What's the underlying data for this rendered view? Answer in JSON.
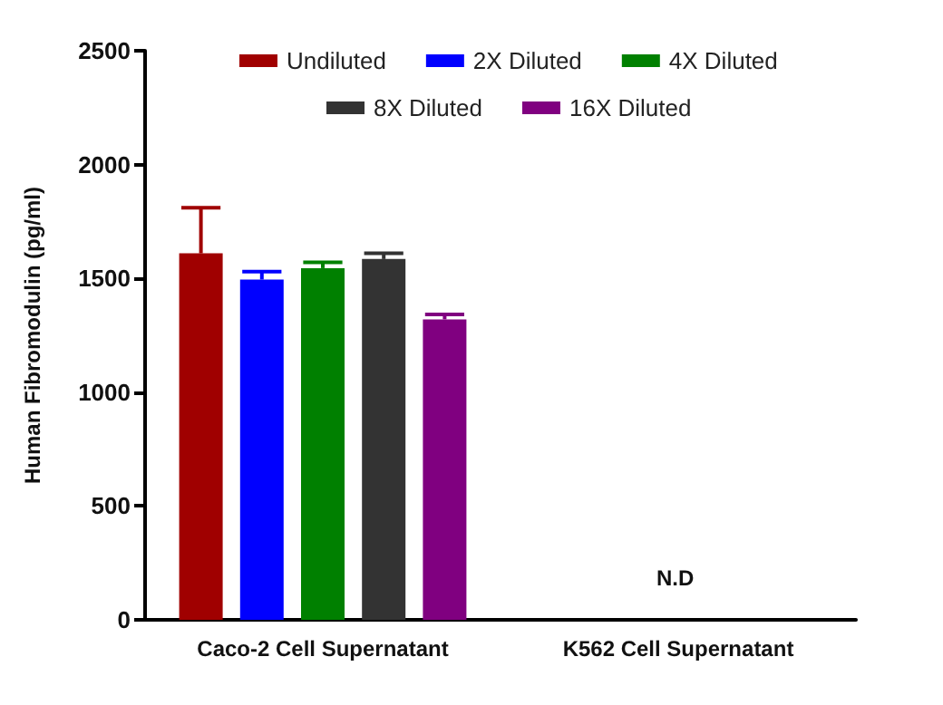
{
  "chart_data": {
    "type": "bar",
    "ylabel": "Human Fibromodulin (pg/ml)",
    "categories": [
      "Caco-2 Cell Supernatant",
      "K562 Cell Supernatant"
    ],
    "series": [
      {
        "name": "Undiluted",
        "color": "#a00000",
        "values": [
          1610,
          null
        ],
        "errors": [
          [
            1610,
            1810
          ],
          null
        ]
      },
      {
        "name": "2X Diluted",
        "color": "#0000ff",
        "values": [
          1495,
          null
        ],
        "errors": [
          [
            1495,
            1530
          ],
          null
        ]
      },
      {
        "name": "4X Diluted",
        "color": "#008000",
        "values": [
          1545,
          null
        ],
        "errors": [
          [
            1545,
            1570
          ],
          null
        ]
      },
      {
        "name": "8X Diluted",
        "color": "#333333",
        "values": [
          1585,
          null
        ],
        "errors": [
          [
            1585,
            1610
          ],
          null
        ]
      },
      {
        "name": "16X Diluted",
        "color": "#800080",
        "values": [
          1320,
          null
        ],
        "errors": [
          [
            1320,
            1342
          ],
          null
        ]
      }
    ],
    "ylim": [
      0,
      2500
    ],
    "yticks": [
      0,
      500,
      1000,
      1500,
      2000,
      2500
    ],
    "grid": false,
    "legend": "top",
    "annotations": [
      "N.D"
    ]
  }
}
